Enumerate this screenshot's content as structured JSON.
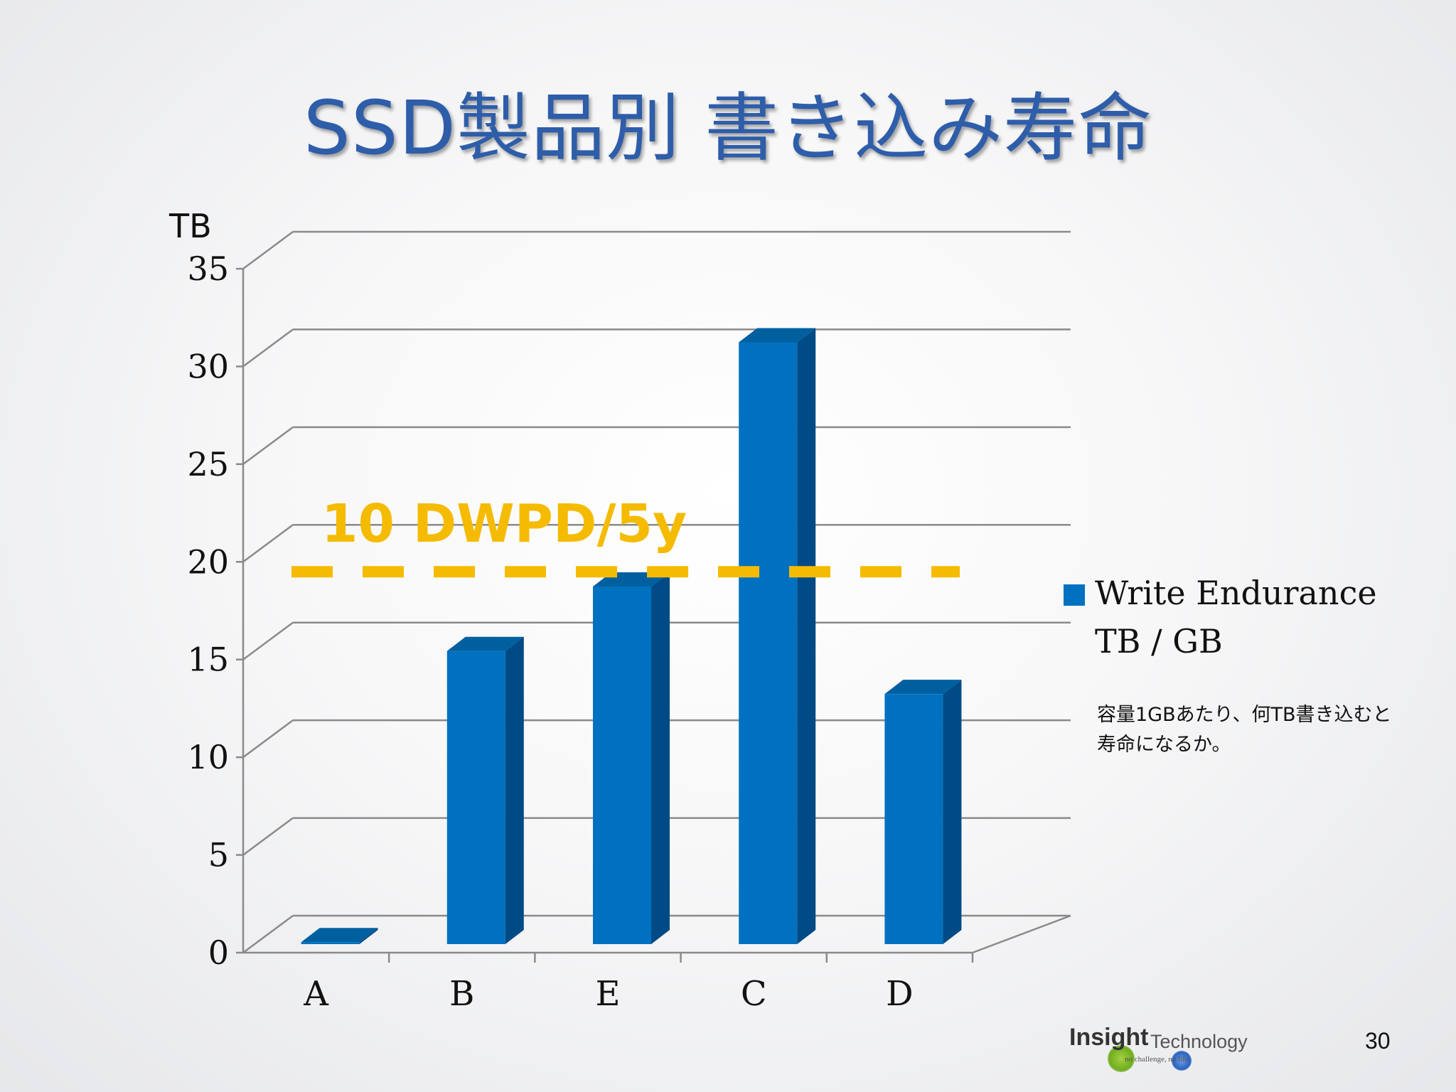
{
  "slide": {
    "title": "SSD製品別 書き込み寿命",
    "page_number": "30",
    "note": "容量1GBあたり、何TB書き込むと寿命になるか。",
    "logo": {
      "word1": "Insight",
      "word2": "Technology",
      "tagline": "no challenge, no life"
    }
  },
  "chart_data": {
    "type": "bar",
    "style": "3d-column",
    "title": "SSD製品別 書き込み寿命",
    "unit_label": "TB",
    "categories": [
      "A",
      "B",
      "E",
      "C",
      "D"
    ],
    "series": [
      {
        "name": "Write Endurance TB / GB",
        "values": [
          0.1,
          15,
          18.3,
          30.8,
          12.8
        ],
        "color": "#0070c0"
      }
    ],
    "ylim": [
      0,
      35
    ],
    "yticks": [
      0,
      5,
      10,
      15,
      20,
      25,
      30,
      35
    ],
    "grid": true,
    "legend_position": "right",
    "legend_lines": [
      "Write Endurance",
      "TB / GB"
    ],
    "reference_line": {
      "label": "10 DWPD/5y",
      "value": 19.2,
      "color": "#f5bb00",
      "style": "dashed"
    }
  }
}
